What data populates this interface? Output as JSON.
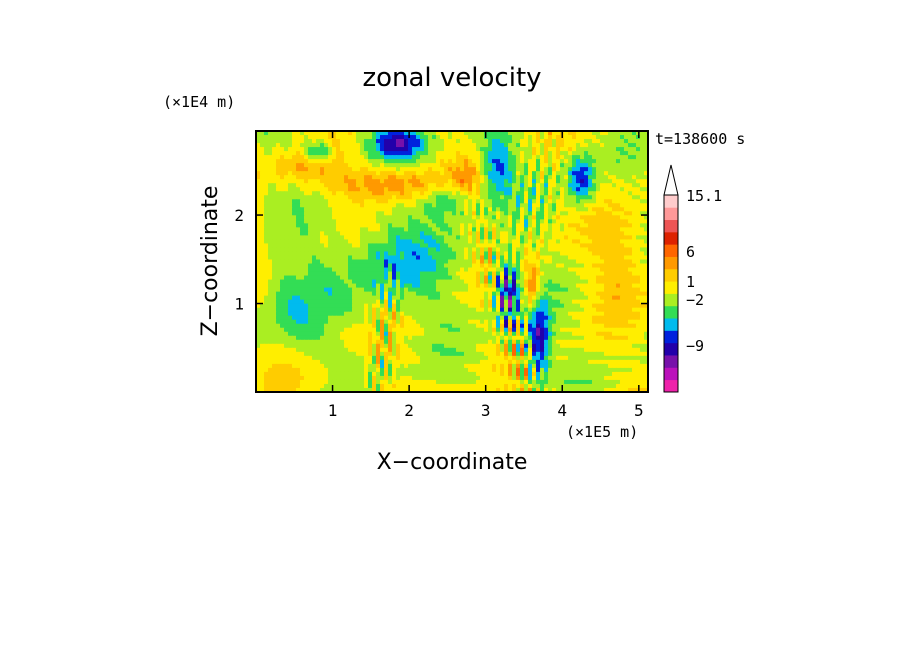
{
  "chart_data": {
    "type": "heatmap",
    "title": "zonal velocity",
    "xlabel": "X−coordinate",
    "ylabel": "Z−coordinate",
    "x_unit": "(×1E5 m)",
    "y_unit": "(×1E4 m)",
    "time_label": "t=138600 s",
    "xlim": [
      0,
      5.12
    ],
    "ylim": [
      0,
      2.95
    ],
    "x_ticks": [
      "1",
      "2",
      "3",
      "4",
      "5"
    ],
    "y_ticks": [
      "1",
      "2"
    ],
    "colorbar": {
      "tick_labels": [
        "15.1",
        "6",
        "1",
        "−2",
        "−9"
      ],
      "colors": [
        "#ee22aa",
        "#bb11bb",
        "#7711aa",
        "#2200aa",
        "#0022dd",
        "#00bbee",
        "#33dd55",
        "#aaee22",
        "#ffee00",
        "#ffcc00",
        "#ff9900",
        "#ff6600",
        "#dd2200",
        "#ee5555",
        "#ff9999",
        "#ffcccc"
      ]
    },
    "field_features": [
      {
        "type": "plume",
        "x": 1.6,
        "z0": 0.0,
        "z1": 1.6,
        "level": 9
      },
      {
        "type": "plume",
        "x": 3.6,
        "z0": 0.0,
        "z1": 1.3,
        "level": 12
      },
      {
        "type": "core",
        "x": 1.85,
        "z": 2.82,
        "level": 3
      },
      {
        "type": "core",
        "x": 3.7,
        "z": 0.6,
        "level": 3
      },
      {
        "type": "core",
        "x": 3.3,
        "z": 1.15,
        "level": 3
      },
      {
        "type": "core",
        "x": 4.25,
        "z": 2.4,
        "level": 3
      },
      {
        "type": "band",
        "x": 1.8,
        "z": 2.35,
        "level": 11
      }
    ]
  }
}
